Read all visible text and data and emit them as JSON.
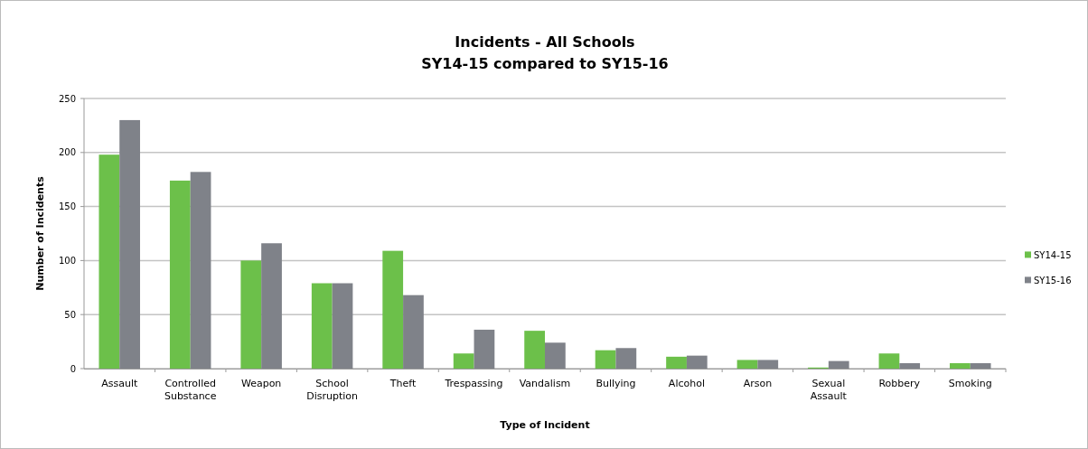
{
  "chart_data": {
    "type": "bar",
    "title": "Incidents - All Schools",
    "subtitle": "SY14-15 compared to SY15-16",
    "xlabel": "Type of Incident",
    "ylabel": "Number of Incidents",
    "categories": [
      "Assault",
      "Controlled Substance",
      "Weapon",
      "School Disruption",
      "Theft",
      "Trespassing",
      "Vandalism",
      "Bullying",
      "Alcohol",
      "Arson",
      "Sexual Assault",
      "Robbery",
      "Smoking"
    ],
    "series": [
      {
        "name": "SY14-15",
        "color": "#6cc04a",
        "values": [
          198,
          174,
          100,
          79,
          109,
          14,
          35,
          17,
          11,
          8,
          1,
          14,
          5
        ]
      },
      {
        "name": "SY15-16",
        "color": "#7f8289",
        "values": [
          230,
          182,
          116,
          79,
          68,
          36,
          24,
          19,
          12,
          8,
          7,
          5,
          5
        ]
      }
    ],
    "ylim": [
      0,
      250
    ],
    "yticks": [
      0,
      50,
      100,
      150,
      200,
      250
    ],
    "grid": "y",
    "legend": "right"
  }
}
